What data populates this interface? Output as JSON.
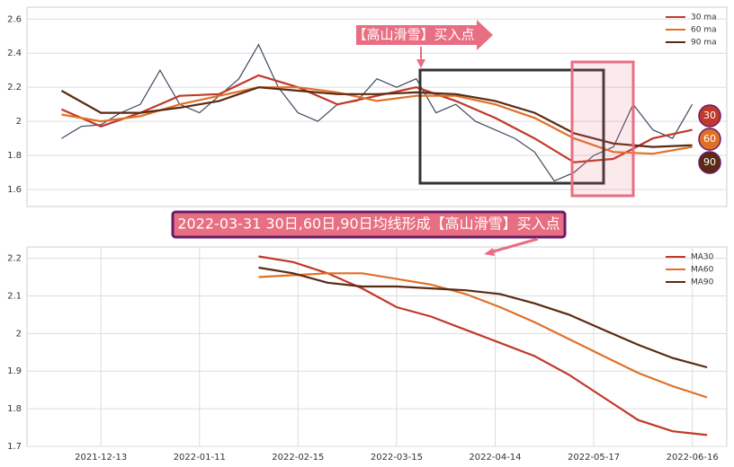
{
  "chart_data": [
    {
      "type": "line",
      "ylim": [
        1.5,
        2.67
      ],
      "yticks": [
        1.6,
        1.8,
        2.0,
        2.2,
        2.4,
        2.6
      ],
      "xlim": [
        5,
        147
      ],
      "grid": true,
      "legend": "upper right",
      "series": [
        {
          "color": "#3d4a5e",
          "x": [
            12,
            16,
            20,
            24,
            28,
            32,
            36,
            40,
            44,
            48,
            52,
            56,
            60,
            64,
            68,
            72,
            76,
            80,
            84,
            88,
            92,
            96,
            100,
            104,
            108,
            112,
            116,
            120,
            124,
            128,
            132,
            136,
            140
          ],
          "values": [
            1.9,
            1.97,
            1.98,
            2.05,
            2.1,
            2.3,
            2.1,
            2.05,
            2.15,
            2.25,
            2.45,
            2.2,
            2.05,
            2.0,
            2.1,
            2.12,
            2.25,
            2.2,
            2.25,
            2.05,
            2.1,
            2.0,
            1.95,
            1.9,
            1.82,
            1.65,
            1.7,
            1.8,
            1.85,
            2.1,
            1.95,
            1.9,
            2.1
          ]
        },
        {
          "name": "30 ma",
          "color": "#c0392b",
          "x": [
            12,
            20,
            28,
            36,
            44,
            52,
            60,
            68,
            76,
            84,
            92,
            100,
            108,
            116,
            124,
            132,
            140
          ],
          "values": [
            2.07,
            1.97,
            2.05,
            2.15,
            2.16,
            2.27,
            2.2,
            2.1,
            2.15,
            2.2,
            2.12,
            2.02,
            1.9,
            1.76,
            1.78,
            1.9,
            1.95
          ]
        },
        {
          "name": "60 ma",
          "color": "#e07028",
          "x": [
            12,
            20,
            28,
            36,
            44,
            52,
            60,
            68,
            76,
            84,
            92,
            100,
            108,
            116,
            124,
            132,
            140
          ],
          "values": [
            2.04,
            2.0,
            2.03,
            2.1,
            2.15,
            2.2,
            2.2,
            2.17,
            2.12,
            2.15,
            2.15,
            2.1,
            2.02,
            1.9,
            1.82,
            1.81,
            1.85
          ]
        },
        {
          "name": "90 ma",
          "color": "#5a2a12",
          "x": [
            12,
            20,
            28,
            36,
            44,
            52,
            60,
            68,
            76,
            84,
            92,
            100,
            108,
            116,
            124,
            132,
            140
          ],
          "values": [
            2.18,
            2.05,
            2.05,
            2.08,
            2.12,
            2.2,
            2.18,
            2.16,
            2.16,
            2.17,
            2.16,
            2.12,
            2.05,
            1.93,
            1.87,
            1.85,
            1.86
          ]
        }
      ]
    },
    {
      "type": "line",
      "ylim": [
        1.7,
        2.23
      ],
      "yticks": [
        1.7,
        1.8,
        1.9,
        2.0,
        2.1,
        2.2
      ],
      "xlim": [
        5,
        147
      ],
      "xticks": [
        {
          "value": 20,
          "label": "2021-12-13"
        },
        {
          "value": 40,
          "label": "2022-01-11"
        },
        {
          "value": 60,
          "label": "2022-02-15"
        },
        {
          "value": 80,
          "label": "2022-03-15"
        },
        {
          "value": 100,
          "label": "2022-04-14"
        },
        {
          "value": 120,
          "label": "2022-05-17"
        },
        {
          "value": 140,
          "label": "2022-06-16"
        }
      ],
      "grid": true,
      "legend": "upper right",
      "series": [
        {
          "name": "MA30",
          "color": "#c0392b",
          "x": [
            52,
            59,
            66,
            73,
            80,
            87,
            94,
            101,
            108,
            115,
            122,
            129,
            136,
            143
          ],
          "values": [
            2.205,
            2.19,
            2.16,
            2.12,
            2.07,
            2.045,
            2.01,
            1.975,
            1.94,
            1.89,
            1.83,
            1.77,
            1.74,
            1.73
          ]
        },
        {
          "name": "MA60",
          "color": "#e07028",
          "x": [
            52,
            59,
            66,
            73,
            80,
            87,
            94,
            101,
            108,
            115,
            122,
            129,
            136,
            143
          ],
          "values": [
            2.15,
            2.155,
            2.16,
            2.16,
            2.145,
            2.13,
            2.105,
            2.07,
            2.03,
            1.985,
            1.94,
            1.895,
            1.86,
            1.83
          ]
        },
        {
          "name": "MA90",
          "color": "#5a2a12",
          "x": [
            52,
            59,
            66,
            73,
            80,
            87,
            94,
            101,
            108,
            115,
            122,
            129,
            136,
            143
          ],
          "values": [
            2.175,
            2.16,
            2.135,
            2.125,
            2.125,
            2.12,
            2.115,
            2.105,
            2.08,
            2.05,
            2.01,
            1.97,
            1.935,
            1.91
          ]
        }
      ]
    }
  ],
  "annotations": {
    "buy_point": "【高山滑雪】买入点",
    "banner": "2022-03-31 30日,60日,90日均线形成【高山滑雪】买入点",
    "badges": [
      30,
      60,
      90
    ]
  }
}
